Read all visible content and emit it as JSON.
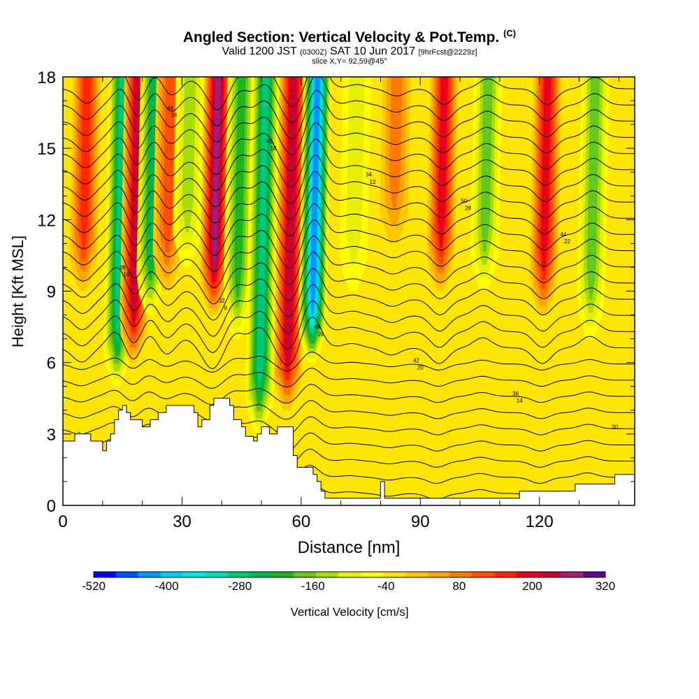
{
  "title": {
    "main": "Angled Section: Vertical Velocity & Pot.Temp.",
    "main_mark": "(C)",
    "valid_prefix": "Valid 1200 JST",
    "valid_utc": "(0300Z)",
    "valid_date": "SAT 10 Jun 2017",
    "forecast": "[9hrFcst@2229z]",
    "slice": "slice X,Y= 92,59@45°"
  },
  "chart_data": {
    "type": "heatmap",
    "xlabel": "Distance [nm]",
    "ylabel": "Height [Kft MSL]",
    "xlim": [
      0,
      144
    ],
    "ylim": [
      0,
      18
    ],
    "x_ticks": [
      0,
      30,
      60,
      90,
      120
    ],
    "y_ticks": [
      0,
      3,
      6,
      9,
      12,
      15,
      18
    ],
    "colorbar": {
      "label": "Vertical Velocity [cm/s]",
      "tick_labels": [
        "-520",
        "-400",
        "-280",
        "-160",
        "-40",
        "80",
        "200",
        "320"
      ],
      "min": -520,
      "max": 320,
      "step": 40,
      "colors": [
        "#0000ff",
        "#0050ff",
        "#0096ff",
        "#00c8ff",
        "#00e6e6",
        "#00dcb4",
        "#00c878",
        "#00b450",
        "#1eb41e",
        "#64c81e",
        "#aadc00",
        "#e6f000",
        "#ffff00",
        "#ffe600",
        "#ffc800",
        "#ffa500",
        "#ff7800",
        "#ff5000",
        "#ff2800",
        "#e6001e",
        "#c80032",
        "#a01e78",
        "#5a0096"
      ]
    },
    "background_value": 0,
    "velocity_bands": [
      {
        "x": 5,
        "value": 200,
        "ztop": 18,
        "zbot": 9
      },
      {
        "x": 14,
        "value": -260,
        "ztop": 18,
        "zbot": 5
      },
      {
        "x": 18,
        "value": 260,
        "ztop": 18,
        "zbot": 6
      },
      {
        "x": 22,
        "value": -240,
        "ztop": 18,
        "zbot": 8
      },
      {
        "x": 26,
        "value": 140,
        "ztop": 18,
        "zbot": 9
      },
      {
        "x": 31,
        "value": -120,
        "ztop": 18,
        "zbot": 10
      },
      {
        "x": 38,
        "value": 300,
        "ztop": 18,
        "zbot": 8
      },
      {
        "x": 44,
        "value": -200,
        "ztop": 18,
        "zbot": 7
      },
      {
        "x": 50,
        "value": -280,
        "ztop": 18,
        "zbot": 3
      },
      {
        "x": 57,
        "value": 260,
        "ztop": 18,
        "zbot": 4
      },
      {
        "x": 63,
        "value": -440,
        "ztop": 18,
        "zbot": 6
      },
      {
        "x": 73,
        "value": -60,
        "ztop": 18,
        "zbot": 9
      },
      {
        "x": 83,
        "value": 100,
        "ztop": 18,
        "zbot": 11
      },
      {
        "x": 95,
        "value": 220,
        "ztop": 18,
        "zbot": 9
      },
      {
        "x": 106,
        "value": -140,
        "ztop": 18,
        "zbot": 9
      },
      {
        "x": 121,
        "value": 220,
        "ztop": 18,
        "zbot": 8
      },
      {
        "x": 133,
        "value": -160,
        "ztop": 18,
        "zbot": 7
      }
    ],
    "terrain": [
      [
        0,
        2.7
      ],
      [
        3,
        3.0
      ],
      [
        6,
        3.0
      ],
      [
        7,
        2.7
      ],
      [
        9,
        2.7
      ],
      [
        10,
        2.3
      ],
      [
        11,
        2.7
      ],
      [
        12,
        3.0
      ],
      [
        13,
        3.6
      ],
      [
        14,
        4.0
      ],
      [
        15,
        4.2
      ],
      [
        16,
        3.9
      ],
      [
        17,
        3.6
      ],
      [
        18,
        3.6
      ],
      [
        20,
        3.3
      ],
      [
        22,
        3.6
      ],
      [
        24,
        3.9
      ],
      [
        26,
        4.2
      ],
      [
        30,
        4.2
      ],
      [
        33,
        3.9
      ],
      [
        34,
        3.3
      ],
      [
        35,
        3.6
      ],
      [
        37,
        4.2
      ],
      [
        38,
        4.5
      ],
      [
        41,
        4.5
      ],
      [
        42,
        4.2
      ],
      [
        43,
        3.6
      ],
      [
        45,
        3.3
      ],
      [
        46,
        2.9
      ],
      [
        48,
        2.7
      ],
      [
        49,
        3.0
      ],
      [
        50,
        3.3
      ],
      [
        52,
        3.0
      ],
      [
        54,
        3.3
      ],
      [
        57,
        3.3
      ],
      [
        58,
        2.1
      ],
      [
        59,
        1.6
      ],
      [
        62,
        1.6
      ],
      [
        63,
        1.3
      ],
      [
        64,
        1.0
      ],
      [
        65,
        0.6
      ],
      [
        66,
        0.3
      ],
      [
        79,
        0.3
      ],
      [
        80,
        1.0
      ],
      [
        81,
        0.3
      ],
      [
        114,
        0.3
      ],
      [
        115,
        0.6
      ],
      [
        128,
        0.6
      ],
      [
        129,
        0.9
      ],
      [
        138,
        0.9
      ],
      [
        139,
        1.3
      ],
      [
        144,
        1.3
      ]
    ],
    "isentropes": {
      "count": 26,
      "base": 0.5,
      "spacing": 0.68
    },
    "contour_labels": [
      "2",
      "8",
      "12",
      "14",
      "16",
      "18",
      "20",
      "22",
      "24",
      "26",
      "28",
      "30",
      "32",
      "34",
      "36",
      "38",
      "40",
      "42",
      "44",
      "46",
      "48",
      "50"
    ]
  }
}
